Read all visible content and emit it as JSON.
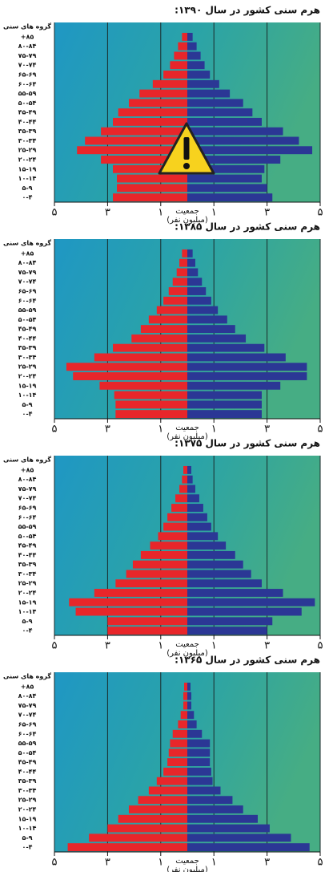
{
  "chart_data": [
    {
      "type": "pyramid",
      "title": "هرم سنی کشور در سال ۱۳۹۰:",
      "ylabel": "گروه های سنی",
      "xlabel": [
        "جمعیت",
        "(میلیون نفر)"
      ],
      "categories": [
        "+۸۵",
        "۸۰-۸۴",
        "۷۵-۷۹",
        "۷۰-۷۴",
        "۶۵-۶۹",
        "۶۰-۶۴",
        "۵۵-۵۹",
        "۵۰-۵۴",
        "۴۵-۴۹",
        "۴۰-۴۴",
        "۳۵-۳۹",
        "۳۰-۳۴",
        "۲۵-۲۹",
        "۲۰-۲۴",
        "۱۵-۱۹",
        "۱۰-۱۴",
        "۵-۹",
        "۰-۴"
      ],
      "series": [
        {
          "color": "#e8262a",
          "values": [
            0.2,
            0.35,
            0.5,
            0.65,
            0.9,
            1.3,
            1.8,
            2.2,
            2.6,
            2.8,
            3.25,
            3.85,
            4.15,
            3.25,
            2.8,
            2.65,
            2.65,
            2.8
          ]
        },
        {
          "color": "#2b3795",
          "values": [
            0.2,
            0.35,
            0.5,
            0.65,
            0.85,
            1.2,
            1.6,
            2.1,
            2.45,
            2.8,
            3.6,
            4.2,
            4.7,
            3.5,
            2.9,
            2.8,
            3.0,
            3.2
          ]
        }
      ],
      "xlim": [
        -5,
        5
      ],
      "xticks": [
        {
          "value": -5,
          "label": "۵"
        },
        {
          "value": -3,
          "label": "۳"
        },
        {
          "value": -1,
          "label": "۱"
        },
        {
          "value": 1,
          "label": "۱"
        },
        {
          "value": 3,
          "label": "۳"
        },
        {
          "value": 5,
          "label": "۵"
        }
      ],
      "grid": true
    },
    {
      "type": "pyramid",
      "title": "هرم سنی کشور در سال ۱۳۸۵:",
      "ylabel": "گروه های سنی",
      "xlabel": [
        "جمعیت",
        "(میلیون نفر)"
      ],
      "categories": [
        "+۸۵",
        "۸۰-۸۴",
        "۷۵-۷۹",
        "۷۰-۷۴",
        "۶۵-۶۹",
        "۶۰-۶۴",
        "۵۵-۵۹",
        "۵۰-۵۴",
        "۴۵-۴۹",
        "۴۰-۴۴",
        "۳۵-۳۹",
        "۳۰-۳۴",
        "۲۵-۲۹",
        "۲۰-۲۴",
        "۱۵-۱۹",
        "۱۰-۱۴",
        "۵-۹",
        "۰-۴"
      ],
      "series": [
        {
          "color": "#e8262a",
          "values": [
            0.2,
            0.3,
            0.4,
            0.55,
            0.7,
            0.9,
            1.15,
            1.45,
            1.75,
            2.1,
            2.8,
            3.5,
            4.55,
            4.3,
            3.3,
            2.75,
            2.7,
            2.7
          ]
        },
        {
          "color": "#2b3795",
          "values": [
            0.2,
            0.3,
            0.4,
            0.55,
            0.7,
            0.9,
            1.15,
            1.5,
            1.8,
            2.2,
            2.9,
            3.7,
            4.5,
            4.5,
            3.5,
            2.8,
            2.8,
            2.8
          ]
        }
      ],
      "xlim": [
        -5,
        5
      ],
      "xticks": [
        {
          "value": -5,
          "label": "۵"
        },
        {
          "value": -3,
          "label": "۳"
        },
        {
          "value": -1,
          "label": "۱"
        },
        {
          "value": 1,
          "label": "۱"
        },
        {
          "value": 3,
          "label": "۳"
        },
        {
          "value": 5,
          "label": "۵"
        }
      ],
      "grid": true
    },
    {
      "type": "pyramid",
      "title": "هرم سنی کشور در سال ۱۳۷۵:",
      "ylabel": "گروه های سنی",
      "xlabel": [
        "جمعیت",
        "(میلیون نفر)"
      ],
      "categories": [
        "+۸۵",
        "۸۰-۸۴",
        "۷۵-۷۹",
        "۷۰-۷۴",
        "۶۵-۶۹",
        "۶۰-۶۴",
        "۵۵-۵۹",
        "۵۰-۵۴",
        "۴۵-۴۹",
        "۴۰-۴۴",
        "۳۵-۳۹",
        "۳۰-۳۴",
        "۲۵-۲۹",
        "۲۰-۲۴",
        "۱۵-۱۹",
        "۱۰-۱۴",
        "۵-۹",
        "۰-۴"
      ],
      "series": [
        {
          "color": "#e8262a",
          "values": [
            0.15,
            0.2,
            0.3,
            0.45,
            0.6,
            0.75,
            0.9,
            1.1,
            1.4,
            1.75,
            2.05,
            2.3,
            2.7,
            3.5,
            4.45,
            4.2,
            3.0,
            3.0
          ]
        },
        {
          "color": "#2b3795",
          "values": [
            0.15,
            0.2,
            0.3,
            0.45,
            0.6,
            0.75,
            0.9,
            1.15,
            1.45,
            1.8,
            2.1,
            2.4,
            2.8,
            3.6,
            4.8,
            4.3,
            3.2,
            3.0
          ]
        }
      ],
      "xlim": [
        -5,
        5
      ],
      "xticks": [
        {
          "value": -5,
          "label": "۵"
        },
        {
          "value": -3,
          "label": "۳"
        },
        {
          "value": -1,
          "label": "۱"
        },
        {
          "value": 1,
          "label": "۱"
        },
        {
          "value": 3,
          "label": "۳"
        },
        {
          "value": 5,
          "label": "۵"
        }
      ],
      "grid": true
    },
    {
      "type": "pyramid",
      "title": "هرم سنی کشور در سال ۱۳۶۵:",
      "ylabel": "گروه های سنی",
      "xlabel": [
        "جمعیت",
        "(میلیون نفر)"
      ],
      "categories": [
        "+۸۵",
        "۸۰-۸۴",
        "۷۵-۷۹",
        "۷۰-۷۴",
        "۶۵-۶۹",
        "۶۰-۶۴",
        "۵۵-۵۹",
        "۵۰-۵۴",
        "۴۵-۴۹",
        "۴۰-۴۴",
        "۳۵-۳۹",
        "۳۰-۳۴",
        "۲۵-۲۹",
        "۲۰-۲۴",
        "۱۵-۱۹",
        "۱۰-۱۴",
        "۵-۹",
        "۰-۴"
      ],
      "series": [
        {
          "color": "#e8262a",
          "values": [
            0.12,
            0.15,
            0.15,
            0.25,
            0.35,
            0.55,
            0.65,
            0.7,
            0.75,
            0.9,
            1.15,
            1.45,
            1.85,
            2.2,
            2.6,
            3.0,
            3.7,
            4.5
          ]
        },
        {
          "color": "#2b3795",
          "values": [
            0.12,
            0.15,
            0.15,
            0.25,
            0.35,
            0.55,
            0.85,
            0.85,
            0.85,
            0.9,
            0.95,
            1.25,
            1.7,
            2.1,
            2.65,
            3.1,
            3.9,
            4.6
          ]
        }
      ],
      "xlim": [
        -5,
        5
      ],
      "xticks": [
        {
          "value": -5,
          "label": "۵"
        },
        {
          "value": -3,
          "label": "۳"
        },
        {
          "value": -1,
          "label": "۱"
        },
        {
          "value": 1,
          "label": "۱"
        },
        {
          "value": 3,
          "label": "۳"
        },
        {
          "value": 5,
          "label": "۵"
        }
      ],
      "grid": true
    }
  ]
}
